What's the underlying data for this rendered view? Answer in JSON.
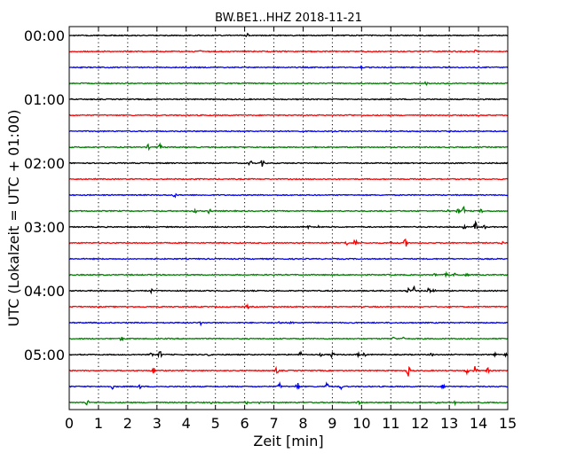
{
  "chart_data": {
    "type": "line",
    "title": "BW.BE1..HHZ 2018-11-21",
    "xlabel": "Zeit  [min]",
    "ylabel": "UTC (Lokalzeit = UTC + 01:00)",
    "xlim": [
      0,
      15
    ],
    "x_ticks": [
      "0",
      "1",
      "2",
      "3",
      "4",
      "5",
      "6",
      "7",
      "8",
      "9",
      "10",
      "11",
      "12",
      "13",
      "14",
      "15"
    ],
    "y_tick_labels": [
      "00:00",
      "01:00",
      "02:00",
      "03:00",
      "04:00",
      "05:00"
    ],
    "grid": "vertical dotted lines at each minute",
    "colors": [
      "#000000",
      "#ff0000",
      "#0000ff",
      "#008000"
    ],
    "series": [
      {
        "start": "00:00",
        "events": [
          [
            6.1,
            0.5
          ]
        ]
      },
      {
        "start": "00:15",
        "events": [
          [
            4.5,
            0.4
          ],
          [
            13.9,
            0.4
          ]
        ]
      },
      {
        "start": "00:30",
        "events": [
          [
            10.0,
            0.4
          ]
        ]
      },
      {
        "start": "00:45",
        "events": [
          [
            12.2,
            0.6
          ],
          [
            12.6,
            0.4
          ],
          [
            12.9,
            0.4
          ]
        ]
      },
      {
        "start": "01:00",
        "events": []
      },
      {
        "start": "01:15",
        "events": [
          [
            9.6,
            0.3
          ]
        ]
      },
      {
        "start": "01:30",
        "events": []
      },
      {
        "start": "01:45",
        "events": [
          [
            2.7,
            0.8
          ],
          [
            3.1,
            1.0
          ]
        ]
      },
      {
        "start": "02:00",
        "events": [
          [
            6.2,
            1.0
          ],
          [
            6.6,
            1.2
          ]
        ]
      },
      {
        "start": "02:15",
        "events": []
      },
      {
        "start": "02:30",
        "events": [
          [
            3.6,
            0.8
          ]
        ]
      },
      {
        "start": "02:45",
        "events": [
          [
            4.3,
            0.6
          ],
          [
            4.8,
            1.0
          ],
          [
            13.0,
            0.8
          ],
          [
            13.3,
            1.0
          ],
          [
            13.5,
            1.8
          ],
          [
            14.1,
            0.6
          ]
        ]
      },
      {
        "start": "03:00",
        "events": [
          [
            2.7,
            0.4
          ],
          [
            8.2,
            0.5
          ],
          [
            8.5,
            0.5
          ],
          [
            13.5,
            0.8
          ],
          [
            13.9,
            1.6
          ],
          [
            14.2,
            0.6
          ]
        ]
      },
      {
        "start": "03:15",
        "events": [
          [
            9.5,
            0.8
          ],
          [
            9.8,
            2.0
          ],
          [
            11.0,
            0.5
          ],
          [
            11.5,
            1.6
          ],
          [
            14.8,
            0.5
          ]
        ]
      },
      {
        "start": "03:30",
        "events": []
      },
      {
        "start": "03:45",
        "events": [
          [
            12.5,
            0.4
          ],
          [
            12.9,
            0.5
          ],
          [
            13.2,
            0.6
          ],
          [
            13.6,
            0.4
          ]
        ]
      },
      {
        "start": "04:00",
        "events": [
          [
            2.8,
            0.6
          ],
          [
            11.6,
            1.0
          ],
          [
            11.8,
            1.6
          ],
          [
            12.3,
            1.4
          ],
          [
            12.5,
            0.6
          ]
        ]
      },
      {
        "start": "04:15",
        "events": [
          [
            6.1,
            0.6
          ]
        ]
      },
      {
        "start": "04:30",
        "events": [
          [
            4.5,
            0.6
          ],
          [
            7.2,
            0.6
          ],
          [
            7.6,
            0.6
          ]
        ]
      },
      {
        "start": "04:45",
        "events": [
          [
            1.8,
            1.0
          ],
          [
            11.1,
            0.6
          ],
          [
            11.4,
            0.5
          ]
        ]
      },
      {
        "start": "05:00",
        "events": [
          [
            2.8,
            0.6
          ],
          [
            3.1,
            1.6
          ],
          [
            4.8,
            0.5
          ],
          [
            7.9,
            1.0
          ],
          [
            8.6,
            0.4
          ],
          [
            9.0,
            1.2
          ],
          [
            9.9,
            0.6
          ],
          [
            10.1,
            0.5
          ],
          [
            12.4,
            0.5
          ],
          [
            14.6,
            0.8
          ],
          [
            14.9,
            0.5
          ]
        ]
      },
      {
        "start": "05:15",
        "events": [
          [
            2.9,
            1.2
          ],
          [
            7.1,
            1.4
          ],
          [
            11.6,
            2.0
          ],
          [
            13.6,
            1.0
          ],
          [
            13.9,
            2.2
          ],
          [
            14.3,
            1.2
          ]
        ]
      },
      {
        "start": "05:30",
        "events": [
          [
            1.5,
            1.0
          ],
          [
            2.4,
            0.8
          ],
          [
            7.2,
            1.2
          ],
          [
            7.8,
            2.0
          ],
          [
            8.8,
            1.6
          ],
          [
            9.3,
            0.8
          ],
          [
            12.8,
            0.8
          ]
        ]
      },
      {
        "start": "05:45",
        "events": [
          [
            0.6,
            1.2
          ],
          [
            4.9,
            0.6
          ],
          [
            6.1,
            0.6
          ],
          [
            6.5,
            0.5
          ],
          [
            9.9,
            0.8
          ],
          [
            12.6,
            0.6
          ],
          [
            13.2,
            0.8
          ]
        ]
      }
    ]
  }
}
